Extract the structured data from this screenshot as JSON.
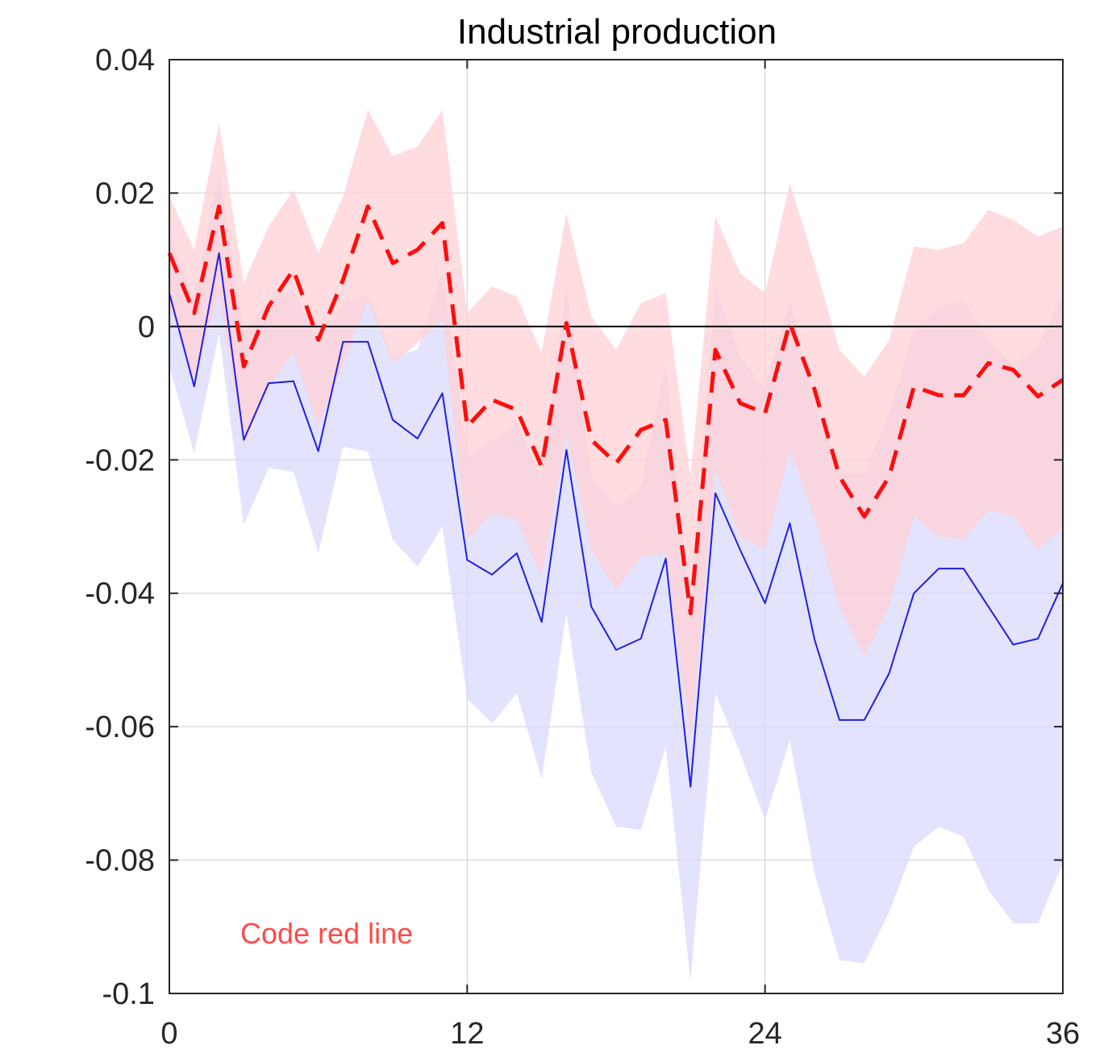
{
  "chart_data": {
    "type": "line",
    "title": "Industrial production",
    "annotation": "Code red line",
    "xlim": [
      0,
      36
    ],
    "ylim": [
      -0.1,
      0.04
    ],
    "xticks": [
      0,
      12,
      24,
      36
    ],
    "xtick_labels": [
      "0",
      "12",
      "24",
      "36"
    ],
    "yticks": [
      0.04,
      0.02,
      0,
      -0.02,
      -0.04,
      -0.06,
      -0.08,
      -0.1
    ],
    "ytick_labels": [
      "0.04",
      "0.02",
      "0",
      "-0.02",
      "-0.04",
      "-0.06",
      "-0.08",
      "-0.1"
    ],
    "grid": true,
    "x": [
      0,
      1,
      2,
      3,
      4,
      5,
      6,
      7,
      8,
      9,
      10,
      11,
      12,
      13,
      14,
      15,
      16,
      17,
      18,
      19,
      20,
      21,
      22,
      23,
      24,
      25,
      26,
      27,
      28,
      29,
      30,
      31,
      32,
      33,
      34,
      35,
      36
    ],
    "series": [
      {
        "style": "solid",
        "values": [
          0.005,
          -0.009,
          0.011,
          -0.017,
          -0.0085,
          -0.0082,
          -0.0187,
          -0.0023,
          -0.0023,
          -0.014,
          -0.0168,
          -0.01,
          -0.035,
          -0.0372,
          -0.034,
          -0.0443,
          -0.0185,
          -0.042,
          -0.0485,
          -0.0468,
          -0.0348,
          -0.069,
          -0.025,
          -0.0335,
          -0.0415,
          -0.0295,
          -0.047,
          -0.059,
          -0.059,
          -0.052,
          -0.04,
          -0.0363,
          -0.0363,
          -0.042,
          -0.0477,
          -0.0468,
          -0.0385
        ],
        "band_lower": [
          -0.006,
          -0.019,
          -0.001,
          -0.0298,
          -0.0212,
          -0.0218,
          -0.034,
          -0.018,
          -0.0188,
          -0.032,
          -0.036,
          -0.03,
          -0.0558,
          -0.0595,
          -0.055,
          -0.0678,
          -0.043,
          -0.0668,
          -0.075,
          -0.0755,
          -0.063,
          -0.0982,
          -0.055,
          -0.064,
          -0.074,
          -0.062,
          -0.082,
          -0.095,
          -0.0955,
          -0.0878,
          -0.078,
          -0.075,
          -0.0765,
          -0.0845,
          -0.0895,
          -0.0895,
          -0.0805
        ],
        "band_upper": [
          0.014,
          0.004,
          0.023,
          -0.001,
          0.004,
          0.0055,
          -0.0025,
          0.0035,
          0.0045,
          -0.0045,
          -0.0035,
          0.0085,
          -0.0195,
          -0.017,
          -0.0145,
          -0.023,
          0.006,
          -0.0225,
          -0.027,
          -0.024,
          -0.0055,
          -0.043,
          0.006,
          -0.0045,
          -0.0095,
          0.004,
          -0.0115,
          -0.022,
          -0.022,
          -0.013,
          -0.0005,
          0.003,
          0.004,
          -0.002,
          -0.006,
          -0.003,
          0.005
        ],
        "color": "#1f1fe6",
        "band_color": "#d9dafc"
      },
      {
        "style": "dashed",
        "values": [
          0.011,
          0.002,
          0.018,
          -0.006,
          0.003,
          0.0085,
          -0.002,
          0.007,
          0.018,
          0.0095,
          0.0115,
          0.0155,
          -0.015,
          -0.011,
          -0.0125,
          -0.021,
          0.0005,
          -0.017,
          -0.0205,
          -0.0155,
          -0.014,
          -0.043,
          -0.0035,
          -0.0115,
          -0.013,
          0.0005,
          -0.0095,
          -0.0225,
          -0.0285,
          -0.0225,
          -0.009,
          -0.0103,
          -0.0103,
          -0.0055,
          -0.0065,
          -0.0105,
          -0.008
        ],
        "band_lower": [
          0.003,
          -0.008,
          0.005,
          -0.018,
          -0.009,
          -0.004,
          -0.015,
          -0.0055,
          0.004,
          -0.0055,
          -0.0025,
          0.001,
          -0.032,
          -0.028,
          -0.029,
          -0.0375,
          -0.016,
          -0.0335,
          -0.0395,
          -0.0345,
          -0.034,
          -0.062,
          -0.0215,
          -0.0315,
          -0.0335,
          -0.0185,
          -0.0285,
          -0.042,
          -0.0495,
          -0.042,
          -0.0285,
          -0.0315,
          -0.032,
          -0.0275,
          -0.0285,
          -0.0335,
          -0.03
        ],
        "band_upper": [
          0.0195,
          0.0115,
          0.0305,
          0.0065,
          0.015,
          0.0205,
          0.011,
          0.0195,
          0.0325,
          0.0255,
          0.027,
          0.0325,
          0.002,
          0.006,
          0.0045,
          -0.004,
          0.017,
          0.0015,
          -0.0035,
          0.0035,
          0.005,
          -0.0225,
          0.0165,
          0.008,
          0.005,
          0.0215,
          0.0095,
          -0.0035,
          -0.0075,
          -0.002,
          0.012,
          0.0115,
          0.0125,
          0.0175,
          0.016,
          0.0135,
          0.015
        ],
        "color": "#ff0d0d",
        "band_color": "#ffd0d4"
      }
    ]
  }
}
